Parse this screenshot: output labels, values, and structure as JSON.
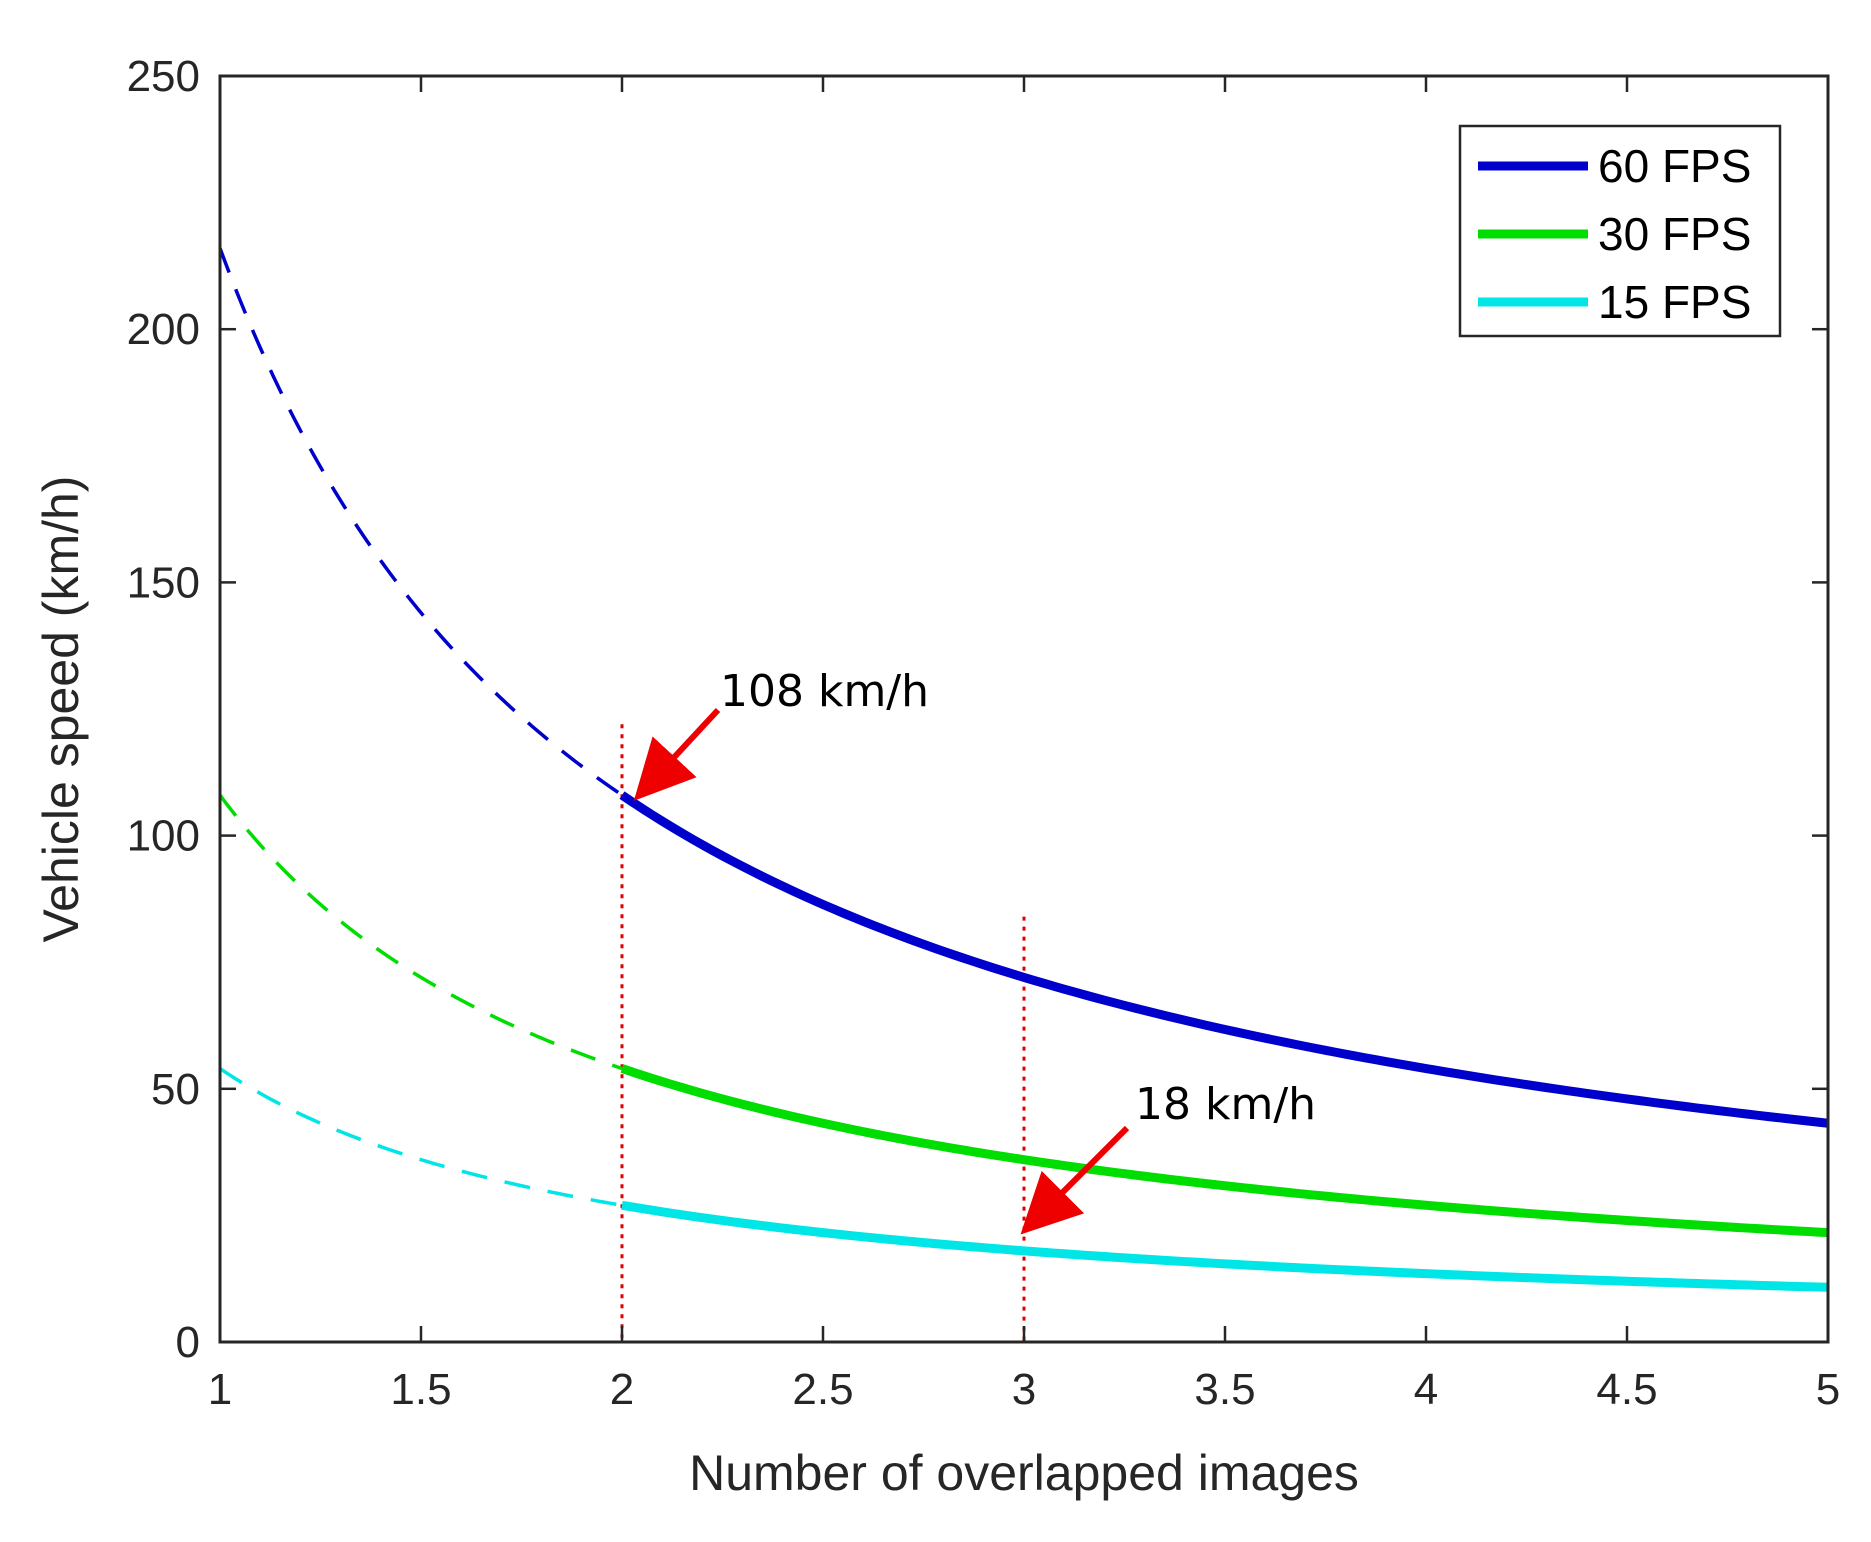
{
  "chart_data": {
    "type": "line",
    "xlabel": "Number of overlapped images",
    "ylabel": "Vehicle speed (km/h)",
    "xlim": [
      1,
      5
    ],
    "ylim": [
      0,
      250
    ],
    "xticks": [
      1,
      1.5,
      2,
      2.5,
      3,
      3.5,
      4,
      4.5,
      5
    ],
    "xtick_labels": [
      "1",
      "1.5",
      "2",
      "2.5",
      "3",
      "3.5",
      "4",
      "4.5",
      "5"
    ],
    "yticks": [
      0,
      50,
      100,
      150,
      200,
      250
    ],
    "ytick_labels": [
      "0",
      "50",
      "100",
      "150",
      "200",
      "250"
    ],
    "grid": false,
    "legend_position": "top-right",
    "series": [
      {
        "name": "60 FPS",
        "color": "#0000cc",
        "constant": 216,
        "dashed_range": [
          1,
          2
        ],
        "solid_range": [
          2,
          5
        ]
      },
      {
        "name": "30 FPS",
        "color": "#00dd00",
        "constant": 108,
        "dashed_range": [
          1,
          2
        ],
        "solid_range": [
          2,
          5
        ]
      },
      {
        "name": "15 FPS",
        "color": "#00e6e6",
        "constant": 54,
        "dashed_range": [
          1,
          2
        ],
        "solid_range": [
          2,
          5
        ]
      }
    ],
    "formula": "y = constant / x",
    "vlines": [
      {
        "x": 2,
        "style": "dotted",
        "color": "#e00000",
        "y_top": 122
      },
      {
        "x": 3,
        "style": "dotted",
        "color": "#e00000",
        "y_top": 84
      }
    ],
    "annotations": [
      {
        "text": "108 km/h",
        "target_x": 2,
        "target_y": 108,
        "arrow_color": "#ee0000"
      },
      {
        "text": "18 km/h",
        "target_x": 3,
        "target_y": 18,
        "arrow_color": "#ee0000"
      }
    ]
  }
}
